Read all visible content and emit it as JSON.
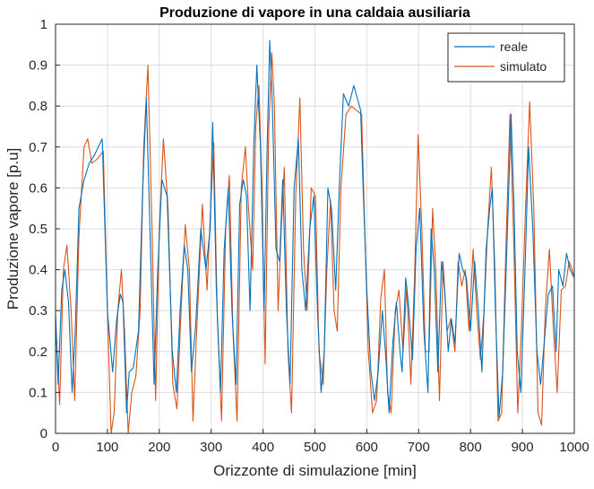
{
  "chart_data": {
    "type": "line",
    "title": "Produzione di vapore in una caldaia ausiliaria",
    "xlabel": "Orizzonte di simulazione [min]",
    "ylabel": "Produzione vapore [p.u]",
    "xlim": [
      0,
      1000
    ],
    "ylim": [
      0,
      1
    ],
    "xticks": [
      0,
      100,
      200,
      300,
      400,
      500,
      600,
      700,
      800,
      900,
      1000
    ],
    "yticks": [
      0,
      0.1,
      0.2,
      0.3,
      0.4,
      0.5,
      0.6,
      0.7,
      0.8,
      0.9,
      1
    ],
    "grid": true,
    "legend_position": "top-right",
    "series": [
      {
        "name": "reale",
        "color": "#0072BD",
        "points": [
          [
            0,
            0.29
          ],
          [
            5,
            0.12
          ],
          [
            12,
            0.35
          ],
          [
            18,
            0.4
          ],
          [
            25,
            0.32
          ],
          [
            32,
            0.1
          ],
          [
            38,
            0.25
          ],
          [
            45,
            0.55
          ],
          [
            55,
            0.62
          ],
          [
            65,
            0.66
          ],
          [
            75,
            0.68
          ],
          [
            90,
            0.72
          ],
          [
            100,
            0.3
          ],
          [
            110,
            0.15
          ],
          [
            118,
            0.28
          ],
          [
            125,
            0.34
          ],
          [
            130,
            0.32
          ],
          [
            137,
            0.05
          ],
          [
            142,
            0.15
          ],
          [
            150,
            0.16
          ],
          [
            160,
            0.25
          ],
          [
            168,
            0.6
          ],
          [
            175,
            0.82
          ],
          [
            183,
            0.45
          ],
          [
            190,
            0.12
          ],
          [
            197,
            0.4
          ],
          [
            205,
            0.62
          ],
          [
            215,
            0.58
          ],
          [
            225,
            0.2
          ],
          [
            233,
            0.1
          ],
          [
            240,
            0.3
          ],
          [
            248,
            0.46
          ],
          [
            255,
            0.4
          ],
          [
            262,
            0.15
          ],
          [
            270,
            0.26
          ],
          [
            280,
            0.5
          ],
          [
            290,
            0.4
          ],
          [
            298,
            0.5
          ],
          [
            303,
            0.76
          ],
          [
            310,
            0.35
          ],
          [
            318,
            0.1
          ],
          [
            325,
            0.45
          ],
          [
            333,
            0.6
          ],
          [
            340,
            0.3
          ],
          [
            348,
            0.12
          ],
          [
            355,
            0.56
          ],
          [
            362,
            0.62
          ],
          [
            368,
            0.58
          ],
          [
            375,
            0.3
          ],
          [
            382,
            0.7
          ],
          [
            388,
            0.9
          ],
          [
            395,
            0.7
          ],
          [
            402,
            0.3
          ],
          [
            408,
            0.7
          ],
          [
            413,
            0.96
          ],
          [
            418,
            0.8
          ],
          [
            425,
            0.45
          ],
          [
            432,
            0.42
          ],
          [
            438,
            0.62
          ],
          [
            445,
            0.3
          ],
          [
            452,
            0.12
          ],
          [
            460,
            0.6
          ],
          [
            468,
            0.72
          ],
          [
            475,
            0.4
          ],
          [
            482,
            0.3
          ],
          [
            490,
            0.5
          ],
          [
            498,
            0.58
          ],
          [
            505,
            0.3
          ],
          [
            512,
            0.1
          ],
          [
            518,
            0.2
          ],
          [
            525,
            0.6
          ],
          [
            532,
            0.55
          ],
          [
            540,
            0.35
          ],
          [
            547,
            0.6
          ],
          [
            555,
            0.83
          ],
          [
            565,
            0.8
          ],
          [
            575,
            0.85
          ],
          [
            588,
            0.79
          ],
          [
            593,
            0.6
          ],
          [
            600,
            0.35
          ],
          [
            608,
            0.15
          ],
          [
            615,
            0.08
          ],
          [
            622,
            0.15
          ],
          [
            630,
            0.3
          ],
          [
            637,
            0.18
          ],
          [
            643,
            0.05
          ],
          [
            650,
            0.22
          ],
          [
            657,
            0.32
          ],
          [
            664,
            0.2
          ],
          [
            668,
            0.15
          ],
          [
            675,
            0.38
          ],
          [
            680,
            0.32
          ],
          [
            688,
            0.18
          ],
          [
            695,
            0.45
          ],
          [
            702,
            0.55
          ],
          [
            710,
            0.25
          ],
          [
            718,
            0.1
          ],
          [
            724,
            0.5
          ],
          [
            730,
            0.4
          ],
          [
            737,
            0.15
          ],
          [
            744,
            0.42
          ],
          [
            750,
            0.35
          ],
          [
            757,
            0.2
          ],
          [
            763,
            0.28
          ],
          [
            770,
            0.22
          ],
          [
            778,
            0.44
          ],
          [
            785,
            0.4
          ],
          [
            792,
            0.38
          ],
          [
            800,
            0.25
          ],
          [
            808,
            0.42
          ],
          [
            815,
            0.3
          ],
          [
            822,
            0.15
          ],
          [
            830,
            0.45
          ],
          [
            837,
            0.55
          ],
          [
            842,
            0.6
          ],
          [
            848,
            0.3
          ],
          [
            855,
            0.04
          ],
          [
            862,
            0.15
          ],
          [
            870,
            0.45
          ],
          [
            878,
            0.78
          ],
          [
            884,
            0.55
          ],
          [
            890,
            0.2
          ],
          [
            897,
            0.1
          ],
          [
            905,
            0.4
          ],
          [
            912,
            0.7
          ],
          [
            920,
            0.5
          ],
          [
            928,
            0.2
          ],
          [
            935,
            0.12
          ],
          [
            942,
            0.22
          ],
          [
            950,
            0.34
          ],
          [
            958,
            0.36
          ],
          [
            965,
            0.2
          ],
          [
            970,
            0.4
          ],
          [
            978,
            0.36
          ],
          [
            985,
            0.44
          ],
          [
            992,
            0.4
          ],
          [
            1000,
            0.38
          ]
        ]
      },
      {
        "name": "simulato",
        "color": "#D95319",
        "points": [
          [
            0,
            0.28
          ],
          [
            8,
            0.07
          ],
          [
            15,
            0.4
          ],
          [
            22,
            0.46
          ],
          [
            30,
            0.3
          ],
          [
            37,
            0.08
          ],
          [
            45,
            0.48
          ],
          [
            55,
            0.7
          ],
          [
            62,
            0.72
          ],
          [
            70,
            0.66
          ],
          [
            80,
            0.67
          ],
          [
            92,
            0.69
          ],
          [
            100,
            0.3
          ],
          [
            107,
            0.0
          ],
          [
            113,
            0.05
          ],
          [
            120,
            0.3
          ],
          [
            127,
            0.4
          ],
          [
            133,
            0.25
          ],
          [
            140,
            0.0
          ],
          [
            147,
            0.1
          ],
          [
            155,
            0.14
          ],
          [
            163,
            0.3
          ],
          [
            170,
            0.7
          ],
          [
            178,
            0.9
          ],
          [
            186,
            0.5
          ],
          [
            193,
            0.08
          ],
          [
            200,
            0.5
          ],
          [
            208,
            0.72
          ],
          [
            217,
            0.55
          ],
          [
            226,
            0.12
          ],
          [
            234,
            0.06
          ],
          [
            242,
            0.3
          ],
          [
            250,
            0.51
          ],
          [
            258,
            0.4
          ],
          [
            265,
            0.03
          ],
          [
            272,
            0.25
          ],
          [
            283,
            0.56
          ],
          [
            292,
            0.35
          ],
          [
            298,
            0.52
          ],
          [
            305,
            0.71
          ],
          [
            312,
            0.28
          ],
          [
            320,
            0.03
          ],
          [
            328,
            0.5
          ],
          [
            335,
            0.63
          ],
          [
            342,
            0.25
          ],
          [
            350,
            0.03
          ],
          [
            358,
            0.6
          ],
          [
            366,
            0.7
          ],
          [
            372,
            0.55
          ],
          [
            380,
            0.4
          ],
          [
            386,
            0.75
          ],
          [
            392,
            0.85
          ],
          [
            398,
            0.6
          ],
          [
            404,
            0.17
          ],
          [
            411,
            0.75
          ],
          [
            417,
            0.93
          ],
          [
            422,
            0.8
          ],
          [
            429,
            0.3
          ],
          [
            435,
            0.5
          ],
          [
            441,
            0.65
          ],
          [
            448,
            0.2
          ],
          [
            455,
            0.05
          ],
          [
            463,
            0.58
          ],
          [
            471,
            0.82
          ],
          [
            478,
            0.45
          ],
          [
            485,
            0.3
          ],
          [
            493,
            0.6
          ],
          [
            501,
            0.58
          ],
          [
            508,
            0.2
          ],
          [
            516,
            0.12
          ],
          [
            523,
            0.4
          ],
          [
            530,
            0.57
          ],
          [
            537,
            0.3
          ],
          [
            543,
            0.25
          ],
          [
            550,
            0.6
          ],
          [
            560,
            0.78
          ],
          [
            570,
            0.8
          ],
          [
            580,
            0.79
          ],
          [
            590,
            0.78
          ],
          [
            596,
            0.5
          ],
          [
            603,
            0.2
          ],
          [
            611,
            0.05
          ],
          [
            619,
            0.08
          ],
          [
            627,
            0.33
          ],
          [
            634,
            0.4
          ],
          [
            640,
            0.1
          ],
          [
            647,
            0.05
          ],
          [
            655,
            0.3
          ],
          [
            662,
            0.35
          ],
          [
            670,
            0.2
          ],
          [
            677,
            0.36
          ],
          [
            685,
            0.12
          ],
          [
            692,
            0.38
          ],
          [
            699,
            0.73
          ],
          [
            706,
            0.5
          ],
          [
            713,
            0.2
          ],
          [
            720,
            0.2
          ],
          [
            727,
            0.55
          ],
          [
            733,
            0.4
          ],
          [
            740,
            0.08
          ],
          [
            747,
            0.42
          ],
          [
            755,
            0.25
          ],
          [
            762,
            0.28
          ],
          [
            770,
            0.2
          ],
          [
            776,
            0.42
          ],
          [
            783,
            0.36
          ],
          [
            790,
            0.4
          ],
          [
            797,
            0.25
          ],
          [
            805,
            0.45
          ],
          [
            812,
            0.3
          ],
          [
            819,
            0.18
          ],
          [
            826,
            0.3
          ],
          [
            833,
            0.5
          ],
          [
            840,
            0.65
          ],
          [
            847,
            0.4
          ],
          [
            853,
            0.03
          ],
          [
            860,
            0.05
          ],
          [
            868,
            0.45
          ],
          [
            876,
            0.78
          ],
          [
            883,
            0.48
          ],
          [
            891,
            0.05
          ],
          [
            898,
            0.25
          ],
          [
            906,
            0.55
          ],
          [
            914,
            0.81
          ],
          [
            922,
            0.55
          ],
          [
            930,
            0.05
          ],
          [
            937,
            0.02
          ],
          [
            944,
            0.3
          ],
          [
            952,
            0.45
          ],
          [
            960,
            0.25
          ],
          [
            967,
            0.1
          ],
          [
            975,
            0.35
          ],
          [
            983,
            0.36
          ],
          [
            990,
            0.42
          ],
          [
            996,
            0.4
          ],
          [
            1000,
            0.38
          ]
        ]
      }
    ]
  }
}
